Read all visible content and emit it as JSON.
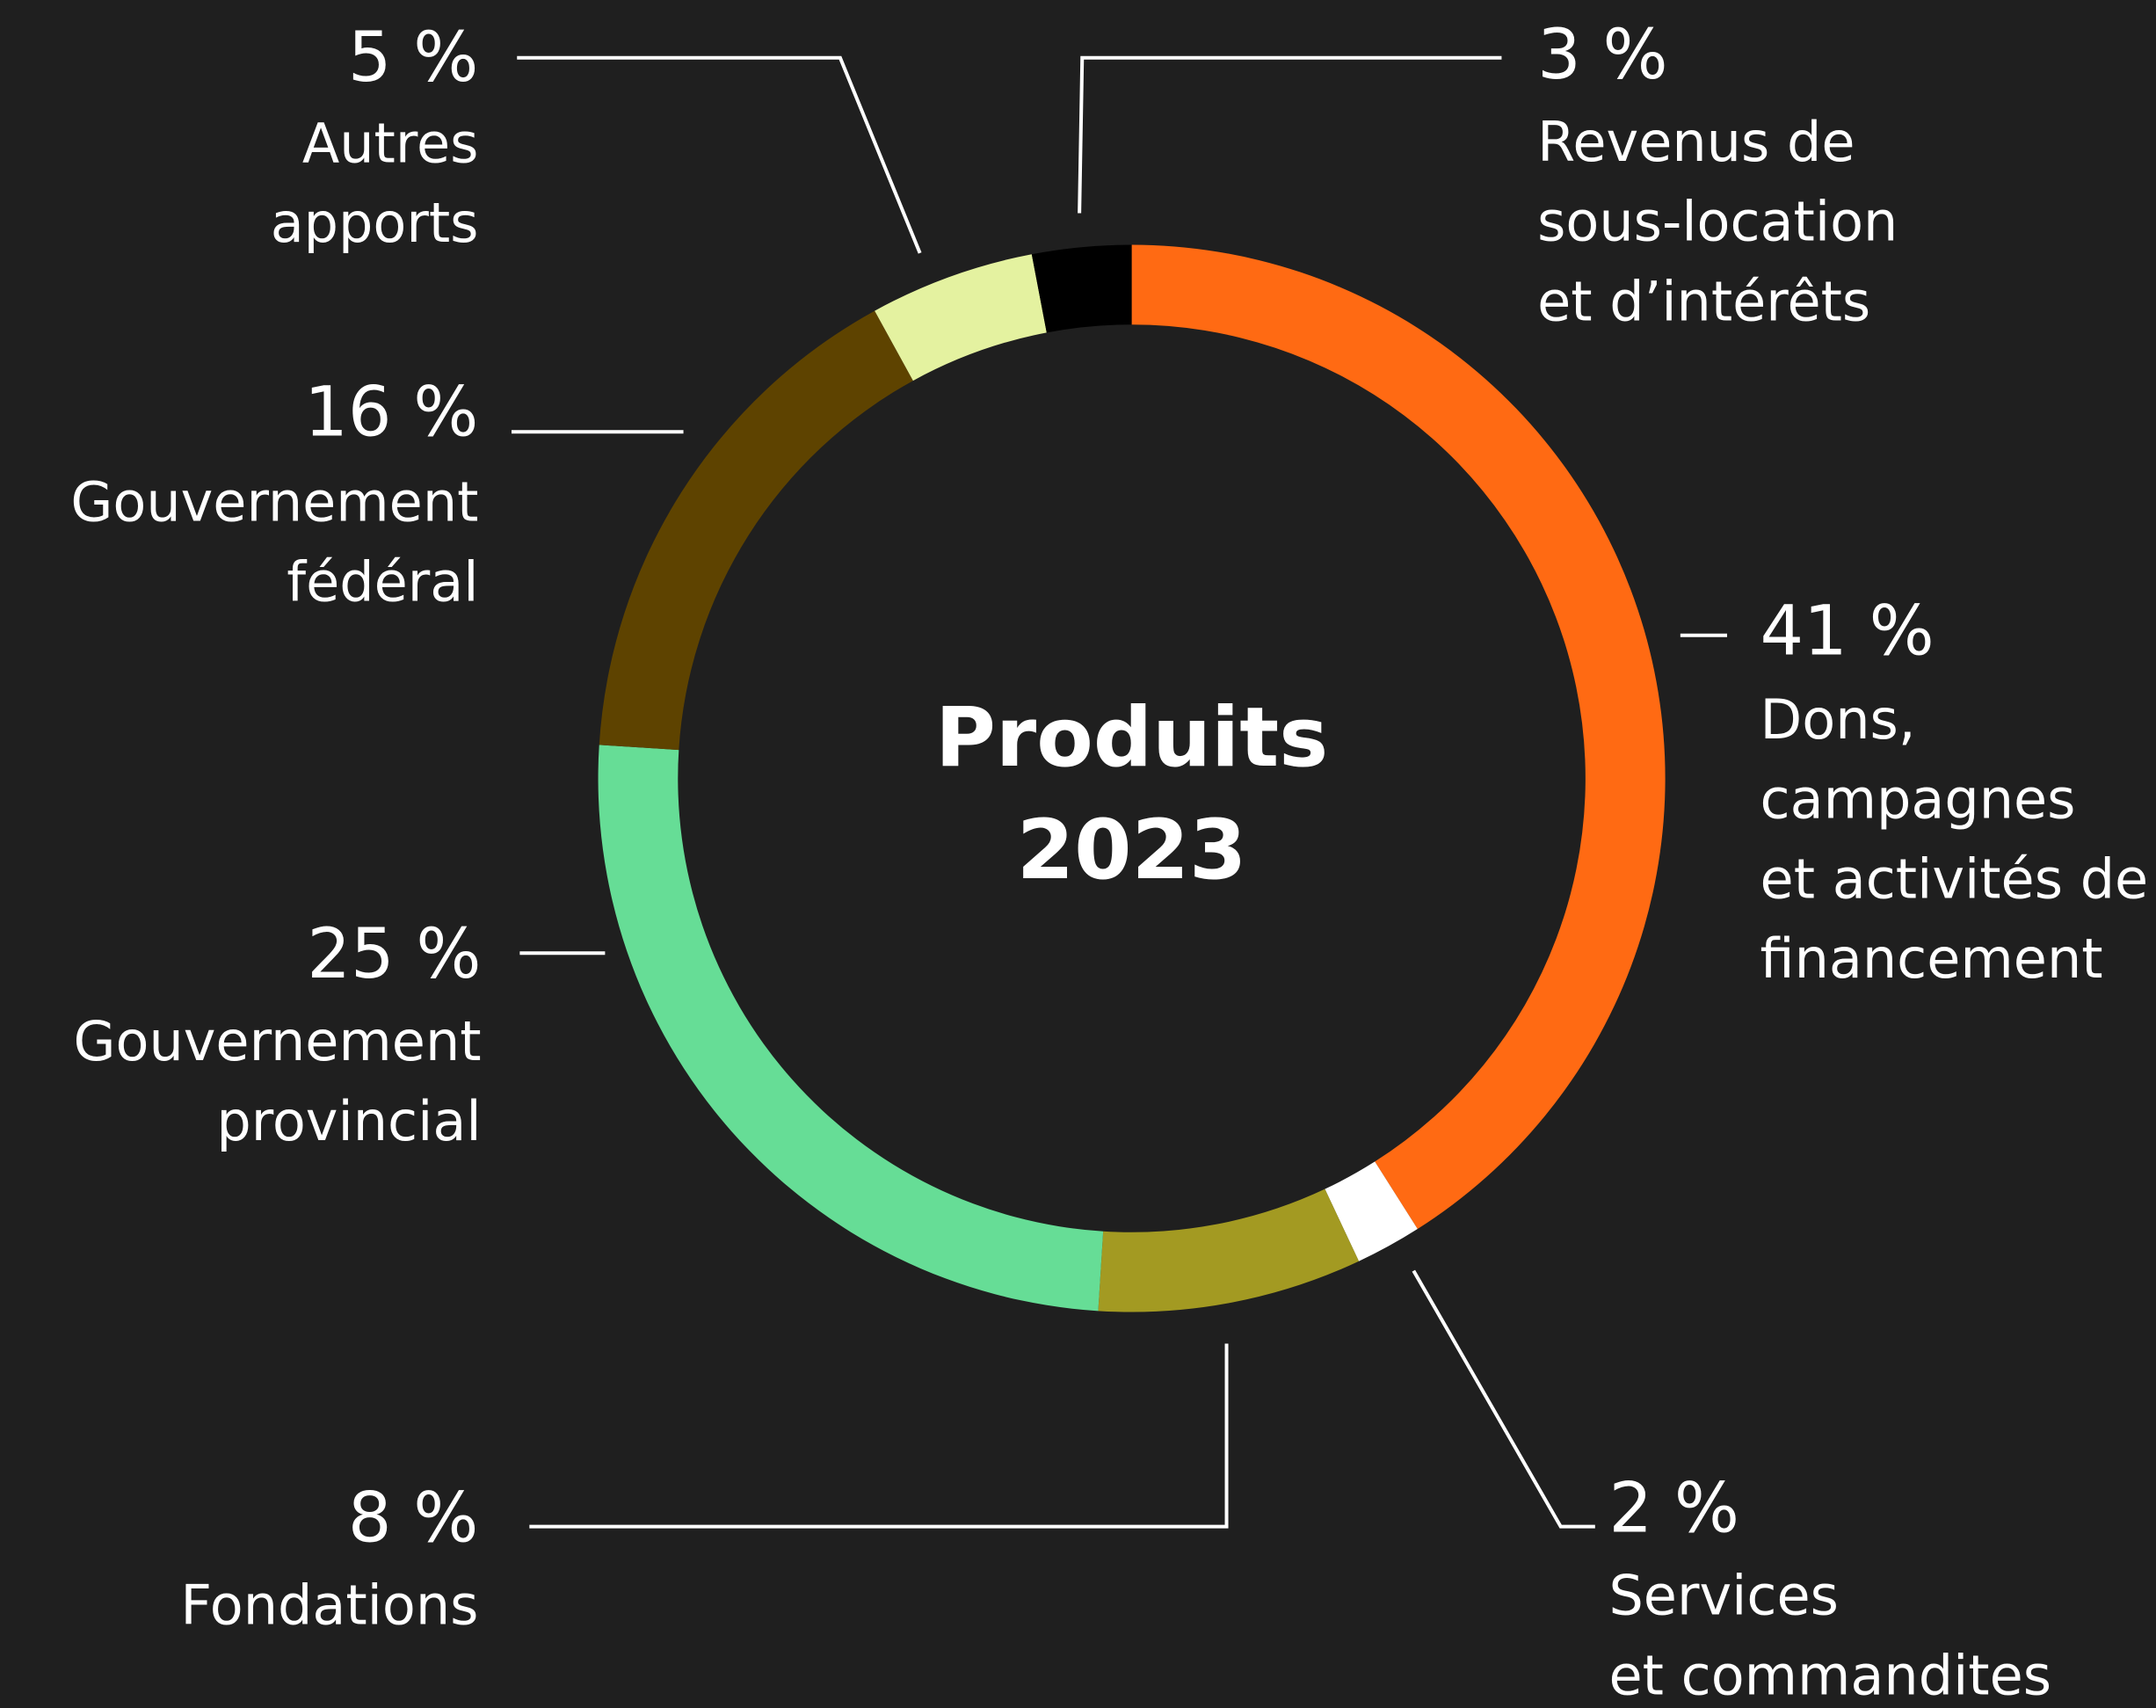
{
  "chart_data": {
    "type": "pie",
    "donut": true,
    "title": "Produits\n2023",
    "categories": [
      "Dons,\ncampagnes\net activités de\nfinancement",
      "Services\net commandites",
      "Fondations",
      "Gouvernement\nprovincial",
      "Gouvernement\nfédéral",
      "Autres\napports",
      "Revenus de\nsous-location\net d’intérêts"
    ],
    "values": [
      41,
      2,
      8,
      25,
      16,
      5,
      3
    ],
    "value_labels": [
      "41 %",
      "2 %",
      "8 %",
      "25 %",
      "16 %",
      "5 %",
      "3 %"
    ],
    "colors": [
      "#ff6a13",
      "#ffffff",
      "#a39a22",
      "#66dd96",
      "#5e4300",
      "#e4f2a0",
      "#000000"
    ]
  }
}
